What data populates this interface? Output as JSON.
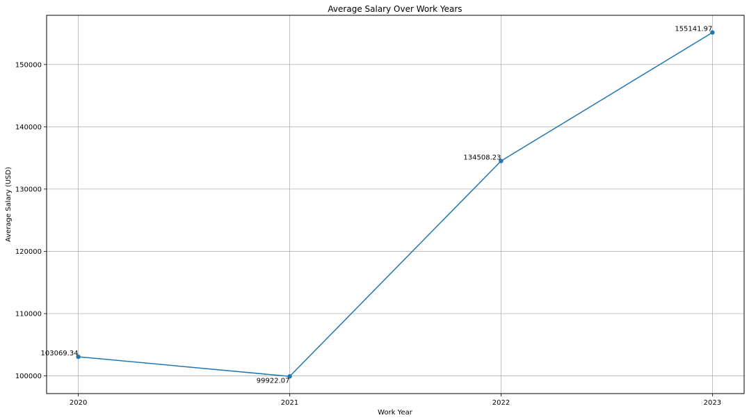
{
  "chart_data": {
    "type": "line",
    "title": "Average Salary Over Work Years",
    "xlabel": "Work Year",
    "ylabel": "Average Salary (USD)",
    "x": [
      2020,
      2021,
      2022,
      2023
    ],
    "x_tick_labels": [
      "2020",
      "2021",
      "2022",
      "2023"
    ],
    "y_ticks": [
      100000,
      110000,
      120000,
      130000,
      140000,
      150000
    ],
    "y_tick_labels": [
      "100000",
      "110000",
      "120000",
      "130000",
      "140000",
      "150000"
    ],
    "xlim": [
      2019.85,
      2023.15
    ],
    "ylim": [
      97160,
      157903
    ],
    "grid": true,
    "series": [
      {
        "values": [
          103069.34,
          99922.07,
          134508.23,
          155141.97
        ],
        "point_labels": [
          "103069.34",
          "99922.07",
          "134508.23",
          "155141.97"
        ],
        "color": "#1f77b4",
        "marker": "circle"
      }
    ]
  }
}
